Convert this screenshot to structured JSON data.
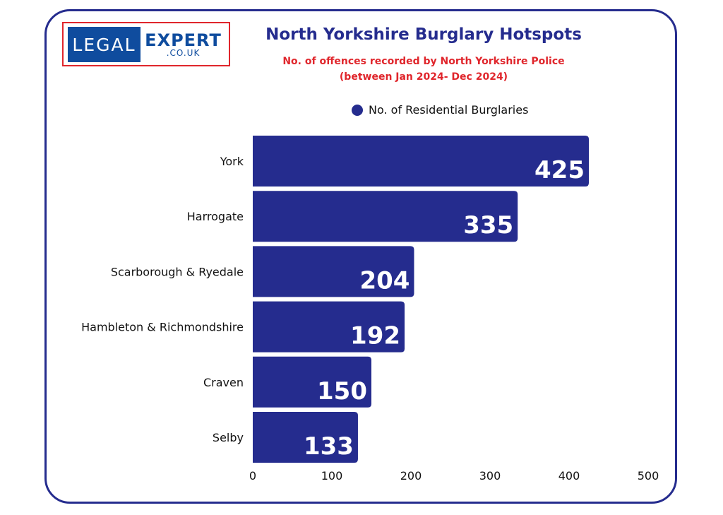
{
  "logo": {
    "word1": "LEGAL",
    "word2": "EXPERT",
    "word3": ".CO.UK"
  },
  "colors": {
    "bar": "#252c8e",
    "frame": "#252c8e",
    "title": "#252c8e",
    "subtitle": "#e0262c",
    "logo_blue": "#0f4c9e",
    "logo_border": "#e0262c"
  },
  "chart_data": {
    "type": "bar",
    "orientation": "horizontal",
    "title": "North Yorkshire Burglary Hotspots",
    "subtitle_line1": "No. of offences recorded by North Yorkshire Police",
    "subtitle_line2": "(between Jan 2024- Dec 2024)",
    "categories": [
      "York",
      "Harrogate",
      "Scarborough & Ryedale",
      "Hambleton & Richmondshire",
      "Craven",
      "Selby"
    ],
    "series": [
      {
        "name": "No. of Residential Burglaries",
        "values": [
          425,
          335,
          204,
          192,
          150,
          133
        ]
      }
    ],
    "xlim": [
      0,
      500
    ],
    "xticks": [
      0,
      100,
      200,
      300,
      400,
      500
    ],
    "grid": false,
    "legend_position": "top"
  }
}
